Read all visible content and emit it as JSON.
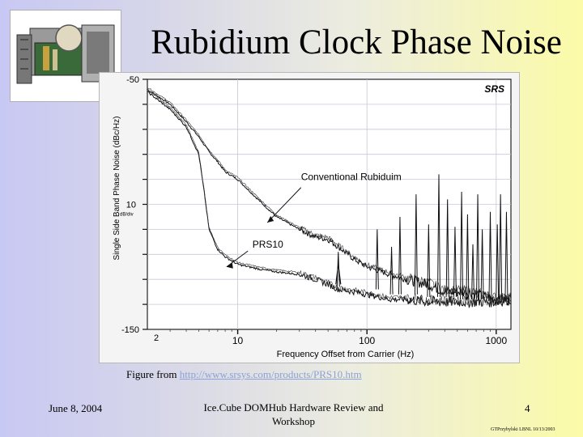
{
  "slide": {
    "title": "Rubidium Clock Phase Noise",
    "caption_prefix": "Figure from ",
    "caption_link": "http://www.srsys.com/products/PRS10.htm",
    "footer_date": "June 8, 2004",
    "footer_center": "Ice.Cube DOMHub Hardware Review and Workshop",
    "page_number": "4",
    "footer_credit": "GTPrzybylski LBNL 10/13/2003"
  },
  "chart_data": {
    "type": "line",
    "logo": "SRS",
    "ylabel": "Single Side Band Phase Noise (dBc/Hz)",
    "xlabel": "Frequency Offset from Carrier (Hz)",
    "xscale": "log",
    "xlim": [
      2,
      1300
    ],
    "ylim": [
      -150,
      -50
    ],
    "y_tick_labels": [
      "-50",
      "10",
      "-150"
    ],
    "y_scale_note": "dB/div",
    "x_tick_labels": [
      "2",
      "10",
      "100",
      "1000"
    ],
    "annotations": [
      "Conventional Rubiduim",
      "PRS10"
    ],
    "series": [
      {
        "name": "Conventional Rubiduim",
        "points": [
          [
            2,
            -54
          ],
          [
            3,
            -60
          ],
          [
            4,
            -67
          ],
          [
            5,
            -73
          ],
          [
            6,
            -79
          ],
          [
            7,
            -83
          ],
          [
            8,
            -87
          ],
          [
            10,
            -90
          ],
          [
            15,
            -99
          ],
          [
            20,
            -105
          ],
          [
            30,
            -110
          ],
          [
            40,
            -113
          ],
          [
            50,
            -114
          ],
          [
            60,
            -117
          ],
          [
            80,
            -122
          ],
          [
            100,
            -125
          ],
          [
            150,
            -128
          ],
          [
            200,
            -130
          ],
          [
            300,
            -132
          ],
          [
            400,
            -135
          ],
          [
            600,
            -135
          ],
          [
            1000,
            -138
          ],
          [
            1300,
            -138
          ]
        ]
      },
      {
        "name": "PRS10",
        "points": [
          [
            2,
            -55
          ],
          [
            3,
            -62
          ],
          [
            4,
            -69
          ],
          [
            5,
            -80
          ],
          [
            5.5,
            -95
          ],
          [
            6,
            -110
          ],
          [
            7,
            -118
          ],
          [
            8,
            -121
          ],
          [
            10,
            -124
          ],
          [
            15,
            -126
          ],
          [
            20,
            -127
          ],
          [
            30,
            -128
          ],
          [
            40,
            -130
          ],
          [
            50,
            -132
          ],
          [
            60,
            -134
          ],
          [
            80,
            -135
          ],
          [
            100,
            -136
          ],
          [
            150,
            -138
          ],
          [
            200,
            -138
          ],
          [
            300,
            -139
          ],
          [
            400,
            -139
          ],
          [
            600,
            -139
          ],
          [
            1000,
            -139
          ],
          [
            1300,
            -138
          ]
        ]
      }
    ],
    "spurs": [
      {
        "x": 60,
        "y": -119,
        "base": -133
      },
      {
        "x": 120,
        "y": -110,
        "base": -134
      },
      {
        "x": 155,
        "y": -117,
        "base": -136
      },
      {
        "x": 180,
        "y": -105,
        "base": -136
      },
      {
        "x": 240,
        "y": -96,
        "base": -136
      },
      {
        "x": 300,
        "y": -108,
        "base": -137
      },
      {
        "x": 360,
        "y": -88,
        "base": -137
      },
      {
        "x": 420,
        "y": -98,
        "base": -137
      },
      {
        "x": 480,
        "y": -109,
        "base": -137
      },
      {
        "x": 540,
        "y": -95,
        "base": -138
      },
      {
        "x": 600,
        "y": -104,
        "base": -138
      },
      {
        "x": 660,
        "y": -116,
        "base": -138
      },
      {
        "x": 720,
        "y": -96,
        "base": -138
      },
      {
        "x": 780,
        "y": -110,
        "base": -138
      },
      {
        "x": 900,
        "y": -103,
        "base": -138
      },
      {
        "x": 1020,
        "y": -108,
        "base": -138
      },
      {
        "x": 1080,
        "y": -96,
        "base": -138
      },
      {
        "x": 1200,
        "y": -103,
        "base": -138
      }
    ],
    "prs10_peak": {
      "x": 60,
      "y": -124,
      "base": -132
    }
  }
}
